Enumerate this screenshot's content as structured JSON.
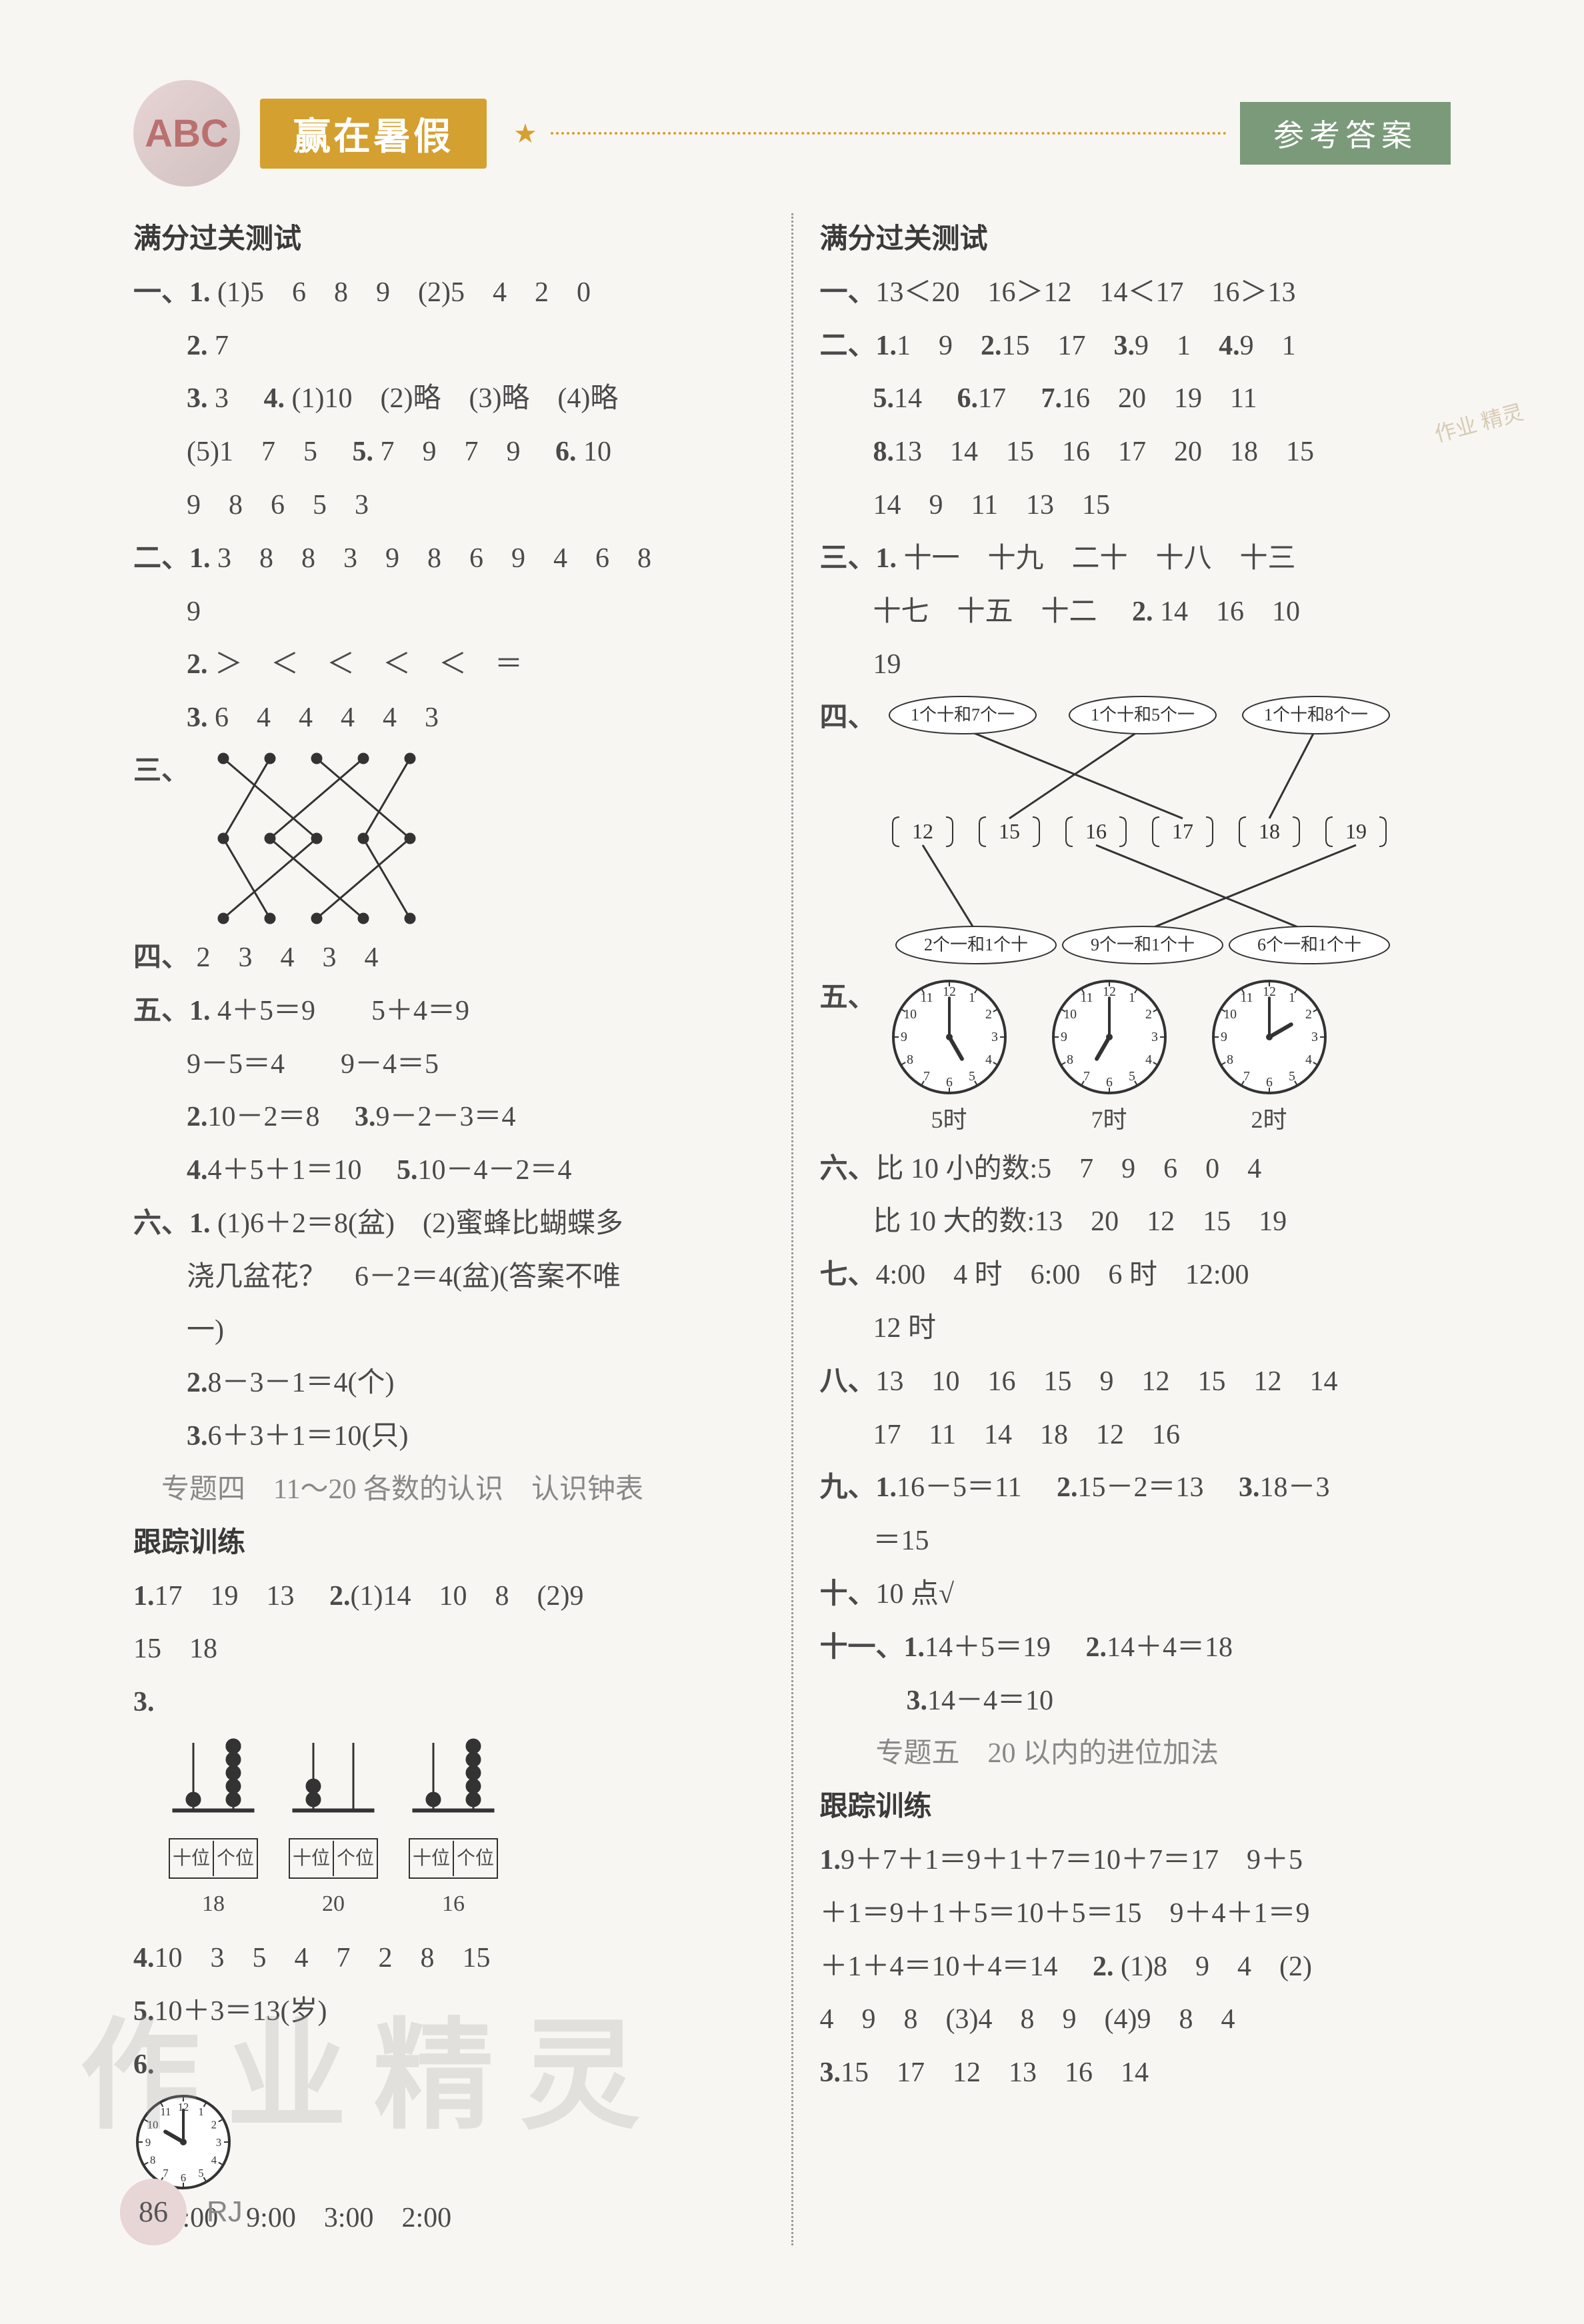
{
  "header": {
    "logo_text": "ABC",
    "title": "赢在暑假",
    "badge": "参考答案"
  },
  "left": {
    "test_title": "满分过关测试",
    "s1": {
      "label": "一、",
      "l1a": "1.",
      "l1b": "(1)5　6　8　9　(2)5　4　2　0",
      "l2a": "2.",
      "l2b": "7",
      "l3a": "3.",
      "l3b": "3　",
      "l3c": "4.",
      "l3d": "(1)10　(2)略　(3)略　(4)略",
      "l4": "(5)1　7　5　",
      "l4b": "5.",
      "l4c": "7　9　7　9　",
      "l4d": "6.",
      "l4e": "10",
      "l5": "9　8　6　5　3"
    },
    "s2": {
      "label": "二、",
      "l1a": "1.",
      "l1b": "3　8　8　3　9　8　6　9　4　6　8",
      "l1c": "9",
      "l2a": "2.",
      "l2b": "＞　＜　＜　＜　＜　＝",
      "l3a": "3.",
      "l3b": "6　4　4　4　4　3"
    },
    "s3_label": "三、",
    "s4": {
      "label": "四、",
      "text": "2　3　4　3　4"
    },
    "s5": {
      "label": "五、",
      "l1a": "1.",
      "l1b": "4＋5＝9　　5＋4＝9",
      "l2": "9－5＝4　　9－4＝5",
      "l3a": "2.",
      "l3b": "10－2＝8　",
      "l3c": "3.",
      "l3d": "9－2－3＝4",
      "l4a": "4.",
      "l4b": "4＋5＋1＝10　",
      "l4c": "5.",
      "l4d": "10－4－2＝4"
    },
    "s6": {
      "label": "六、",
      "l1a": "1.",
      "l1b": "(1)6＋2＝8(盆)　(2)蜜蜂比蝴蝶多",
      "l1c": "浇几盆花？　6－2＝4(盆)(答案不唯",
      "l1d": "一)",
      "l2a": "2.",
      "l2b": "8－3－1＝4(个)",
      "l3a": "3.",
      "l3b": "6＋3＋1＝10(只)"
    },
    "topic4": "专题四　11～20 各数的认识　认识钟表",
    "track_title": "跟踪训练",
    "t1a": "1.",
    "t1b": "17　19　13　",
    "t1c": "2.",
    "t1d": "(1)14　10　8　(2)9",
    "t1e": "15　18",
    "t3_label": "3.",
    "abacus": {
      "shi": "十位",
      "ge": "个位",
      "v1": "18",
      "v2": "20",
      "v3": "16"
    },
    "t4a": "4.",
    "t4b": "10　3　5　4　7　2　8　15",
    "t5a": "5.",
    "t5b": "10＋3＝13(岁)",
    "t6_label": "6.",
    "clock6": {
      "hour": 10,
      "minute": 0
    },
    "t7a": "7.",
    "t7b": "10:00　9:00　3:00　2:00"
  },
  "right": {
    "test_title": "满分过关测试",
    "s1": {
      "label": "一、",
      "text": "13＜20　16＞12　14＜17　16＞13"
    },
    "s2": {
      "label": "二、",
      "l1": "1. 1　9　2. 15　17　3. 9　1　4. 9　1",
      "l1_bold": [
        "1.",
        "2.",
        "3.",
        "4."
      ],
      "l1_plain": [
        "1　9　",
        "15　17　",
        "9　1　",
        "9　1"
      ],
      "l2a": "5.",
      "l2b": "14　",
      "l2c": "6.",
      "l2d": "17　",
      "l2e": "7.",
      "l2f": "16　20　19　11",
      "l3a": "8.",
      "l3b": "13　14　15　16　17　20　18　15",
      "l3c": "14　9　11　13　15"
    },
    "s3": {
      "label": "三、",
      "l1a": "1.",
      "l1b": "十一　十九　二十　十八　十三",
      "l2": "十七　十五　十二　",
      "l2b": "2.",
      "l2c": "14　16　10",
      "l3": "19"
    },
    "s4_label": "四、",
    "s4_diagram": {
      "top": [
        "1个十和7个一",
        "1个十和5个一",
        "1个十和8个一"
      ],
      "mid": [
        "12",
        "15",
        "16",
        "17",
        "18",
        "19"
      ],
      "bot": [
        "2个一和1个十",
        "9个一和1个十",
        "6个一和1个十"
      ],
      "top_colors": "#333",
      "line_color": "#333"
    },
    "s5_label": "五、",
    "clocks5": [
      {
        "hour": 5,
        "minute": 0,
        "label": "5时"
      },
      {
        "hour": 7,
        "minute": 0,
        "label": "7时"
      },
      {
        "hour": 2,
        "minute": 0,
        "label": "2时"
      }
    ],
    "s6": {
      "label": "六、",
      "l1": "比 10 小的数:5　7　9　6　0　4",
      "l2": "比 10 大的数:13　20　12　15　19"
    },
    "s7": {
      "label": "七、",
      "l1": "4:00　4 时　6:00　6 时　12:00",
      "l2": "12 时"
    },
    "s8": {
      "label": "八、",
      "l1": "13　10　16　15　9　12　15　12　14",
      "l2": "17　11　14　18　12　16"
    },
    "s9": {
      "label": "九、",
      "l1a": "1.",
      "l1b": "16－5＝11　",
      "l1c": "2.",
      "l1d": "15－2＝13　",
      "l1e": "3.",
      "l1f": "18－3",
      "l2": "＝15"
    },
    "s10": {
      "label": "十、",
      "text": "10 点√"
    },
    "s11": {
      "label": "十一、",
      "l1a": "1.",
      "l1b": "14＋5＝19　",
      "l1c": "2.",
      "l1d": "14＋4＝18",
      "l2a": "3.",
      "l2b": "14－4＝10"
    },
    "topic5": "专题五　20 以内的进位加法",
    "track_title": "跟踪训练",
    "tt1a": "1.",
    "tt1b": "9＋7＋1＝9＋1＋7＝10＋7＝17　9＋5",
    "tt1c": "＋1＝9＋1＋5＝10＋5＝15　9＋4＋1＝9",
    "tt1d": "＋1＋4＝10＋4＝14　",
    "tt1e": "2.",
    "tt1f": "(1)8　9　4　(2)",
    "tt1g": "4　9　8　(3)4　8　9　(4)9　8　4",
    "tt3a": "3.",
    "tt3b": "15　17　12　13　16　14"
  },
  "footer": {
    "page": "86",
    "code": "RJ"
  },
  "watermark": "作业精灵",
  "watermark2": "作业\n精灵",
  "colors": {
    "text": "#4a4a4a",
    "accent": "#d4a030",
    "badge": "#7a9a7a",
    "light": "#888888",
    "bg": "#f8f6f2"
  }
}
